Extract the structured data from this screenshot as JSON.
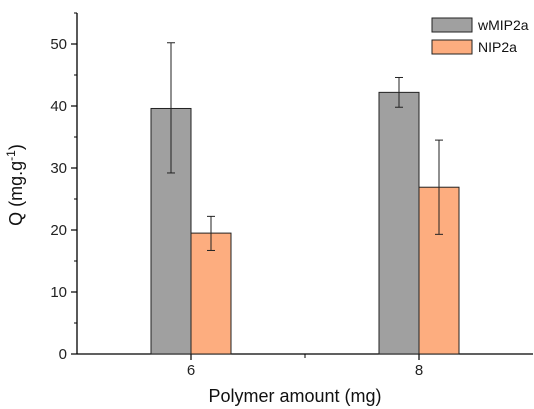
{
  "chart_data": {
    "type": "bar",
    "categories": [
      "6",
      "8"
    ],
    "series": [
      {
        "name": "wMIP2a",
        "color": "#a0a0a0",
        "values": [
          39.6,
          42.2
        ],
        "error_low": [
          29.2,
          39.8
        ],
        "error_high": [
          50.2,
          44.6
        ]
      },
      {
        "name": "NIP2a",
        "color": "#fdad7f",
        "values": [
          19.5,
          26.9
        ],
        "error_low": [
          16.7,
          19.3
        ],
        "error_high": [
          22.2,
          34.5
        ]
      }
    ],
    "xlabel": "Polymer amount (mg)",
    "ylabel_main": "Q (mg.g",
    "ylabel_sup": "-1",
    "ylabel_end": ")",
    "ylim": [
      0,
      55
    ],
    "yticks": [
      "0",
      "10",
      "20",
      "30",
      "40",
      "50"
    ],
    "ytick_values": [
      0,
      10,
      20,
      30,
      40,
      50
    ],
    "grid": false,
    "legend_position": "top-right"
  }
}
